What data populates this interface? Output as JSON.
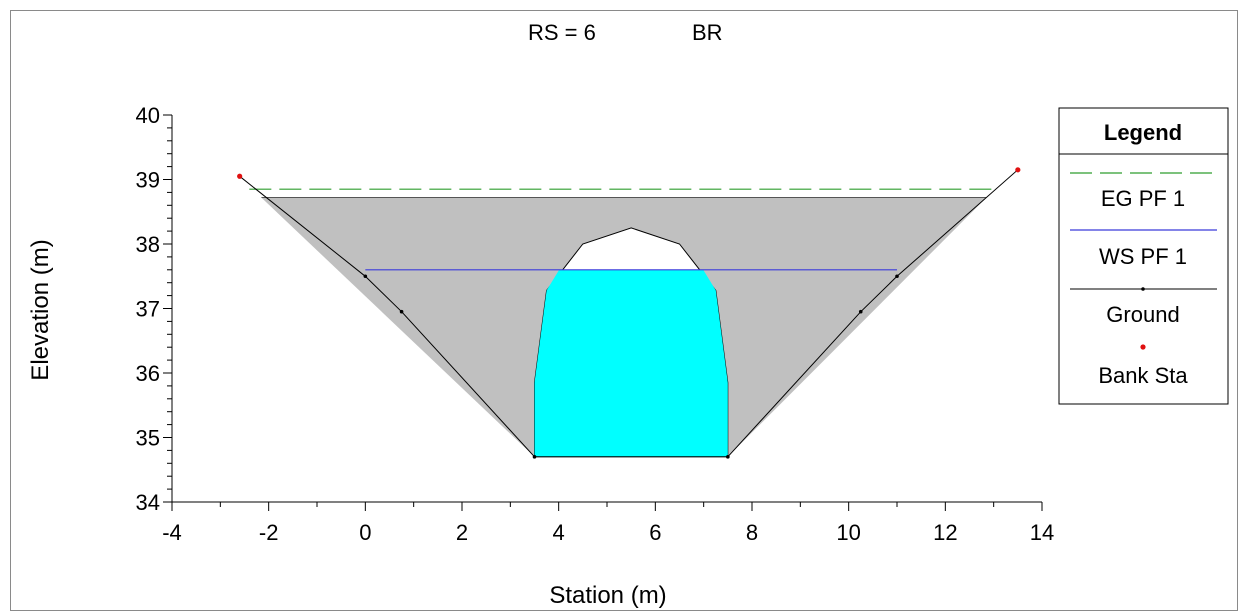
{
  "chart_data": {
    "type": "area",
    "title_left": "RS = 6",
    "title_right": "BR",
    "xlabel": "Station (m)",
    "ylabel": "Elevation (m)",
    "xlim": [
      -4,
      14
    ],
    "ylim": [
      34,
      40
    ],
    "xticks": [
      -4,
      -2,
      0,
      2,
      4,
      6,
      8,
      10,
      12,
      14
    ],
    "yticks": [
      34,
      35,
      36,
      37,
      38,
      39,
      40
    ],
    "x_minor_step": 1,
    "y_minor_step": 0.2,
    "grid": false,
    "legend_position": "right",
    "legend_title": "Legend",
    "colors": {
      "eg": "#2e9e2e",
      "ws": "#3b3bdb",
      "ground": "#000000",
      "bank": "#e01010",
      "deck_fill": "#c0c0c0",
      "water_fill": "#00ffff"
    },
    "series": [
      {
        "name": "EG PF 1",
        "kind": "dashed-line",
        "x": [
          -2.4,
          13.0
        ],
        "y": [
          38.85,
          38.85
        ]
      },
      {
        "name": "WS PF 1",
        "kind": "line",
        "x": [
          0,
          11
        ],
        "y": [
          37.6,
          37.6
        ]
      },
      {
        "name": "Ground",
        "kind": "line-with-points",
        "x": [
          -2.6,
          0,
          0.75,
          3.5,
          7.5,
          10.25,
          11,
          13.5
        ],
        "y": [
          39.05,
          37.5,
          36.95,
          34.7,
          34.7,
          36.95,
          37.5,
          39.15
        ]
      },
      {
        "name": "Bank Sta",
        "kind": "points",
        "x": [
          -2.6,
          13.5
        ],
        "y": [
          39.05,
          39.15
        ]
      }
    ],
    "bridge_deck": {
      "x": [
        -2.15,
        12.85,
        7.5,
        3.5
      ],
      "y": [
        38.72,
        38.72,
        34.7,
        34.7
      ]
    },
    "bridge_opening": {
      "x": [
        3.5,
        7.5,
        7.5,
        7.25,
        6.5,
        5.5,
        4.5,
        3.75,
        3.5
      ],
      "y": [
        34.7,
        34.7,
        35.85,
        37.28,
        38.0,
        38.25,
        38.0,
        37.28,
        35.85
      ]
    },
    "water_in_opening": {
      "x": [
        3.5,
        7.5,
        7.5,
        7.25,
        6.99,
        4.01,
        3.75,
        3.5
      ],
      "y": [
        34.7,
        34.7,
        35.85,
        37.28,
        37.6,
        37.6,
        37.28,
        35.85
      ]
    }
  }
}
